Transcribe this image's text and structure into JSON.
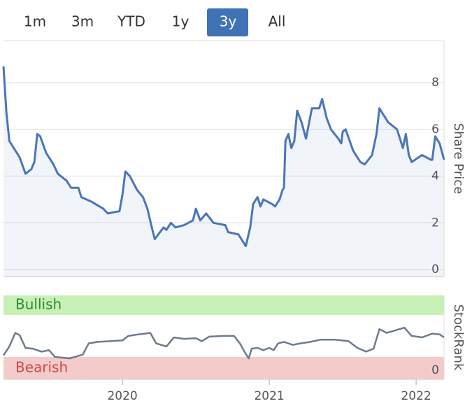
{
  "range_buttons": {
    "labels": [
      "1m",
      "3m",
      "YTD",
      "1y",
      "3y",
      "All"
    ],
    "active": 4
  },
  "chart_data": [
    {
      "type": "area",
      "ylabel": "Share Price",
      "color": "#4a76b8",
      "grid": true,
      "xlim": [
        2019.19,
        2022.19
      ],
      "ylim": [
        -0.3,
        9.8
      ],
      "yticks": [
        0,
        2,
        4,
        6,
        8
      ],
      "series": [
        {
          "x": [
            2019.19,
            2019.21,
            2019.23,
            2019.27,
            2019.3,
            2019.34,
            2019.38,
            2019.4,
            2019.42,
            2019.44,
            2019.48,
            2019.53,
            2019.56,
            2019.62,
            2019.65,
            2019.7,
            2019.72,
            2019.79,
            2019.87,
            2019.9,
            2019.98,
            2020.0,
            2020.02,
            2020.05,
            2020.1,
            2020.14,
            2020.17,
            2020.2,
            2020.22,
            2020.28,
            2020.3,
            2020.33,
            2020.36,
            2020.42,
            2020.48,
            2020.5,
            2020.53,
            2020.57,
            2020.62,
            2020.7,
            2020.72,
            2020.79,
            2020.84,
            2020.87,
            2020.89,
            2020.92,
            2020.94,
            2020.96,
            2021.02,
            2021.04,
            2021.07,
            2021.09,
            2021.1,
            2021.11,
            2021.13,
            2021.15,
            2021.17,
            2021.19,
            2021.22,
            2021.25,
            2021.29,
            2021.34,
            2021.36,
            2021.39,
            2021.42,
            2021.47,
            2021.49,
            2021.5,
            2021.52,
            2021.57,
            2021.62,
            2021.65,
            2021.7,
            2021.73,
            2021.75,
            2021.81,
            2021.87,
            2021.91,
            2021.93,
            2021.95,
            2021.97,
            2022.04,
            2022.1,
            2022.11,
            2022.13,
            2022.16,
            2022.19
          ],
          "values": [
            8.7,
            6.7,
            5.5,
            5.1,
            4.8,
            4.1,
            4.3,
            4.6,
            5.8,
            5.7,
            5.0,
            4.5,
            4.1,
            3.8,
            3.5,
            3.5,
            3.1,
            2.9,
            2.6,
            2.4,
            2.5,
            3.2,
            4.2,
            4.0,
            3.4,
            3.1,
            2.6,
            1.8,
            1.3,
            1.8,
            1.7,
            2.0,
            1.8,
            1.9,
            2.1,
            2.6,
            2.1,
            2.4,
            2.0,
            1.9,
            1.6,
            1.5,
            1.0,
            1.8,
            2.8,
            3.1,
            2.7,
            3.0,
            2.8,
            2.7,
            3.0,
            3.4,
            3.5,
            5.5,
            5.8,
            5.2,
            5.5,
            6.8,
            6.3,
            5.6,
            6.9,
            6.9,
            7.3,
            6.5,
            6.0,
            5.6,
            5.4,
            5.9,
            6.0,
            5.1,
            4.6,
            4.5,
            4.9,
            5.8,
            6.9,
            6.3,
            6.0,
            5.2,
            5.8,
            4.9,
            4.6,
            4.9,
            4.7,
            4.7,
            5.7,
            5.4,
            4.7
          ]
        }
      ]
    },
    {
      "type": "line",
      "ylabel": "StockRank",
      "color": "#6d7b8c",
      "xlim": [
        2019.19,
        2022.19
      ],
      "ylim": [
        -12,
        100
      ],
      "yticks": [
        0
      ],
      "xticks": [
        2020,
        2021,
        2022
      ],
      "bands": [
        {
          "label": "Bullish",
          "from": 74,
          "to": 100,
          "color": "#c6f0b6",
          "text_color": "#2f8a2f"
        },
        {
          "label": "Bearish",
          "from": -12,
          "to": 18,
          "color": "#f3cbcb",
          "text_color": "#d04848"
        }
      ],
      "series": [
        {
          "x": [
            2019.19,
            2019.23,
            2019.27,
            2019.3,
            2019.34,
            2019.39,
            2019.45,
            2019.5,
            2019.54,
            2019.64,
            2019.73,
            2019.77,
            2019.83,
            2019.92,
            2020.0,
            2020.04,
            2020.11,
            2020.19,
            2020.23,
            2020.3,
            2020.35,
            2020.42,
            2020.5,
            2020.54,
            2020.59,
            2020.69,
            2020.76,
            2020.8,
            2020.84,
            2020.86,
            2020.88,
            2020.92,
            2020.96,
            2021.0,
            2021.03,
            2021.06,
            2021.1,
            2021.16,
            2021.21,
            2021.28,
            2021.35,
            2021.45,
            2021.54,
            2021.6,
            2021.66,
            2021.71,
            2021.75,
            2021.8,
            2021.85,
            2021.92,
            2021.97,
            2022.04,
            2022.11,
            2022.16,
            2022.19
          ],
          "values": [
            20,
            32,
            50,
            47,
            30,
            29,
            25,
            27,
            18,
            16,
            21,
            36,
            38,
            39,
            40,
            46,
            48,
            50,
            36,
            32,
            44,
            42,
            43,
            39,
            45,
            46,
            46,
            36,
            22,
            16,
            29,
            30,
            27,
            30,
            27,
            36,
            38,
            34,
            36,
            38,
            41,
            41,
            39,
            30,
            25,
            29,
            55,
            50,
            53,
            57,
            46,
            44,
            49,
            48,
            44
          ]
        }
      ]
    }
  ]
}
